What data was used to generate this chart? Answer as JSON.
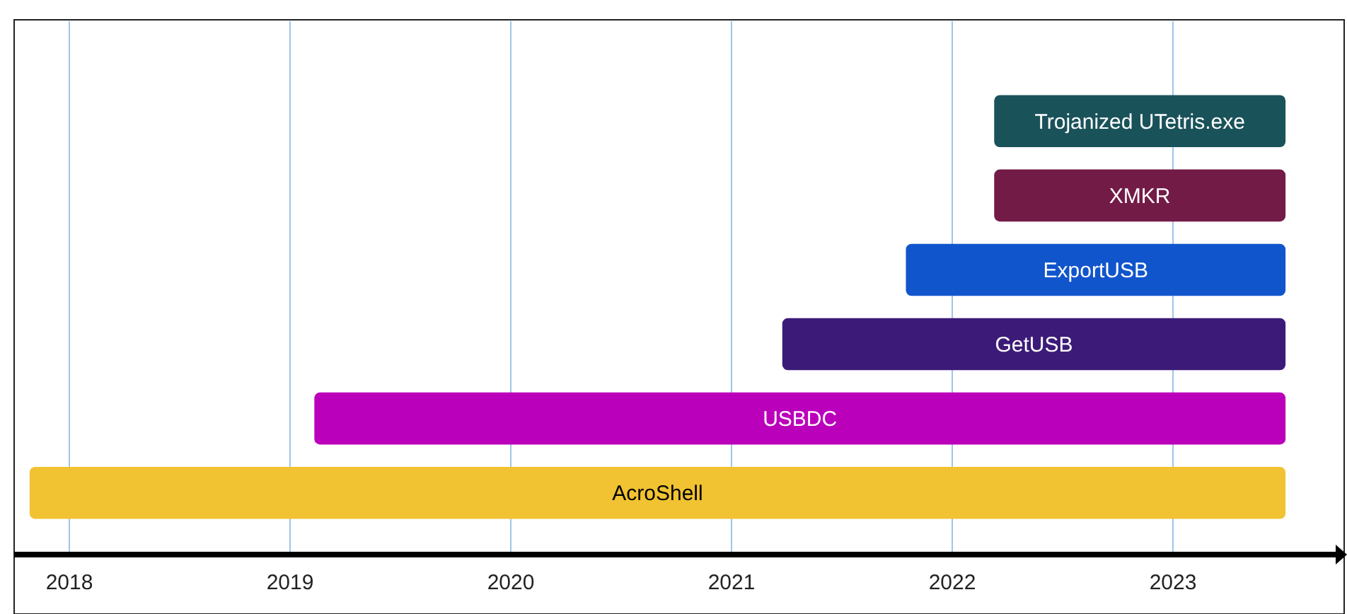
{
  "chart_data": {
    "type": "bar",
    "orientation": "horizontal",
    "categories": [
      "Trojanized UTetris.exe",
      "XMKR",
      "ExportUSB",
      "GetUSB",
      "USBDC",
      "AcroShell"
    ],
    "base": [
      2022.19,
      2022.19,
      2021.79,
      2021.23,
      2019.11,
      2017.82
    ],
    "values": [
      1.32,
      1.32,
      1.72,
      2.28,
      4.4,
      5.69
    ],
    "colors": [
      "#1a525a",
      "#731b47",
      "#1155cc",
      "#3c1b78",
      "#bb00bb",
      "#f1c232"
    ],
    "xlim": [
      2017.75,
      2023.75
    ],
    "xticks": [
      2018,
      2019,
      2020,
      2021,
      2022,
      2023
    ],
    "grid": "x",
    "tick_labels": "x"
  }
}
